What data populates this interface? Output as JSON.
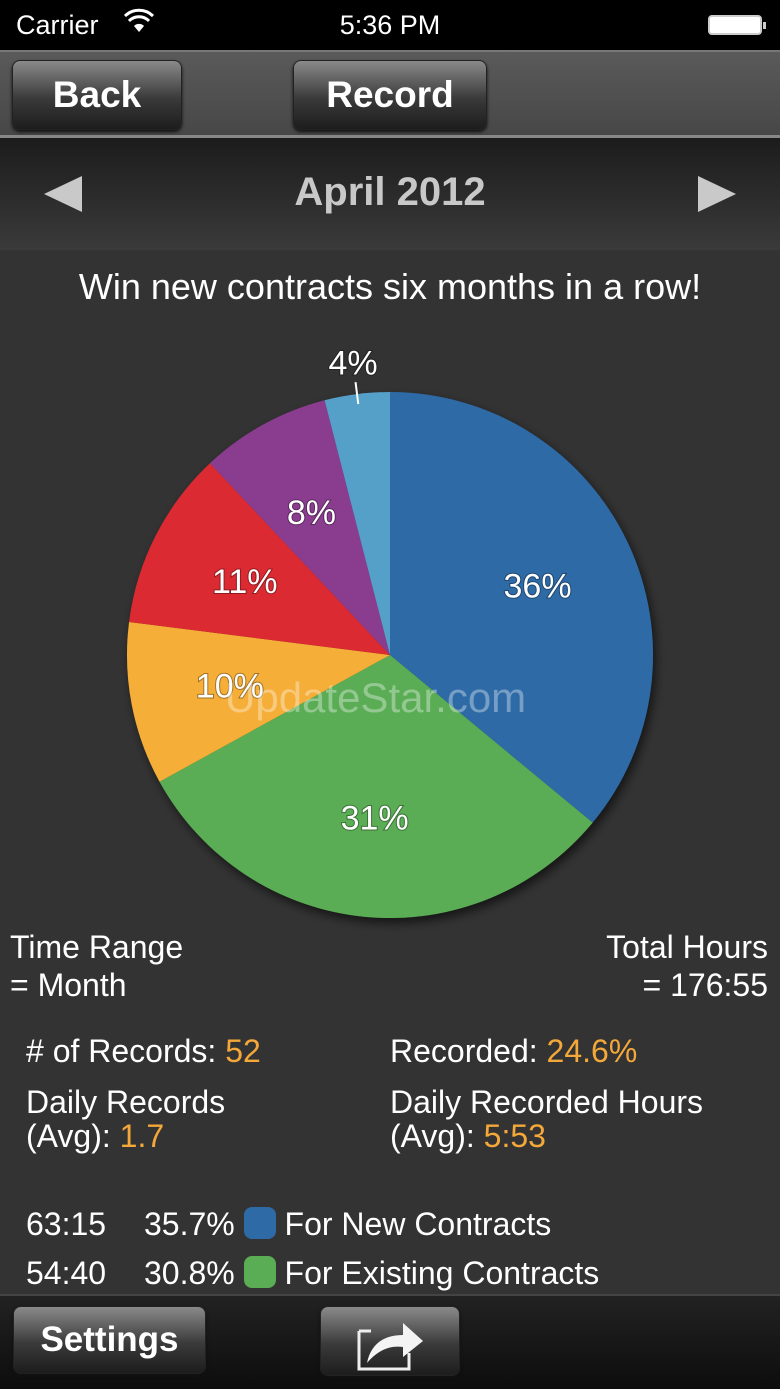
{
  "status_bar": {
    "carrier": "Carrier",
    "time": "5:36 PM"
  },
  "toolbar": {
    "back_label": "Back",
    "record_label": "Record"
  },
  "month_nav": {
    "title": "April  2012"
  },
  "goal": "Win new contracts six months in a row!",
  "watermark": "UpdateStar.com",
  "chart_data": {
    "type": "pie",
    "slices": [
      {
        "label": "36%",
        "value": 36,
        "color": "#2e6aa6"
      },
      {
        "label": "31%",
        "value": 31,
        "color": "#5aac55"
      },
      {
        "label": "10%",
        "value": 10,
        "color": "#f5ae37"
      },
      {
        "label": "11%",
        "value": 11,
        "color": "#dc2a31"
      },
      {
        "label": "8%",
        "value": 8,
        "color": "#8a3e8f"
      },
      {
        "label": "4%",
        "value": 4,
        "color": "#55a0c8"
      }
    ]
  },
  "summary": {
    "time_range_label": "Time Range",
    "time_range_value": "= Month",
    "total_hours_label": "Total Hours",
    "total_hours_value": "= 176:55",
    "records_label": "# of Records: ",
    "records_value": "52",
    "recorded_label": "Recorded: ",
    "recorded_value": "24.6%",
    "daily_records_label1": "Daily Records",
    "daily_records_label2": "(Avg): ",
    "daily_records_value": "1.7",
    "daily_hours_label1": "Daily Recorded Hours",
    "daily_hours_label2": "(Avg): ",
    "daily_hours_value": "5:53"
  },
  "legend": [
    {
      "hours": "63:15",
      "percent": "35.7%",
      "label": "For New Contracts",
      "color": "#2e6aa6"
    },
    {
      "hours": "54:40",
      "percent": "30.8%",
      "label": "For Existing Contracts",
      "color": "#5aac55"
    }
  ],
  "bottom_bar": {
    "settings_label": "Settings",
    "share_icon": "share-icon"
  }
}
